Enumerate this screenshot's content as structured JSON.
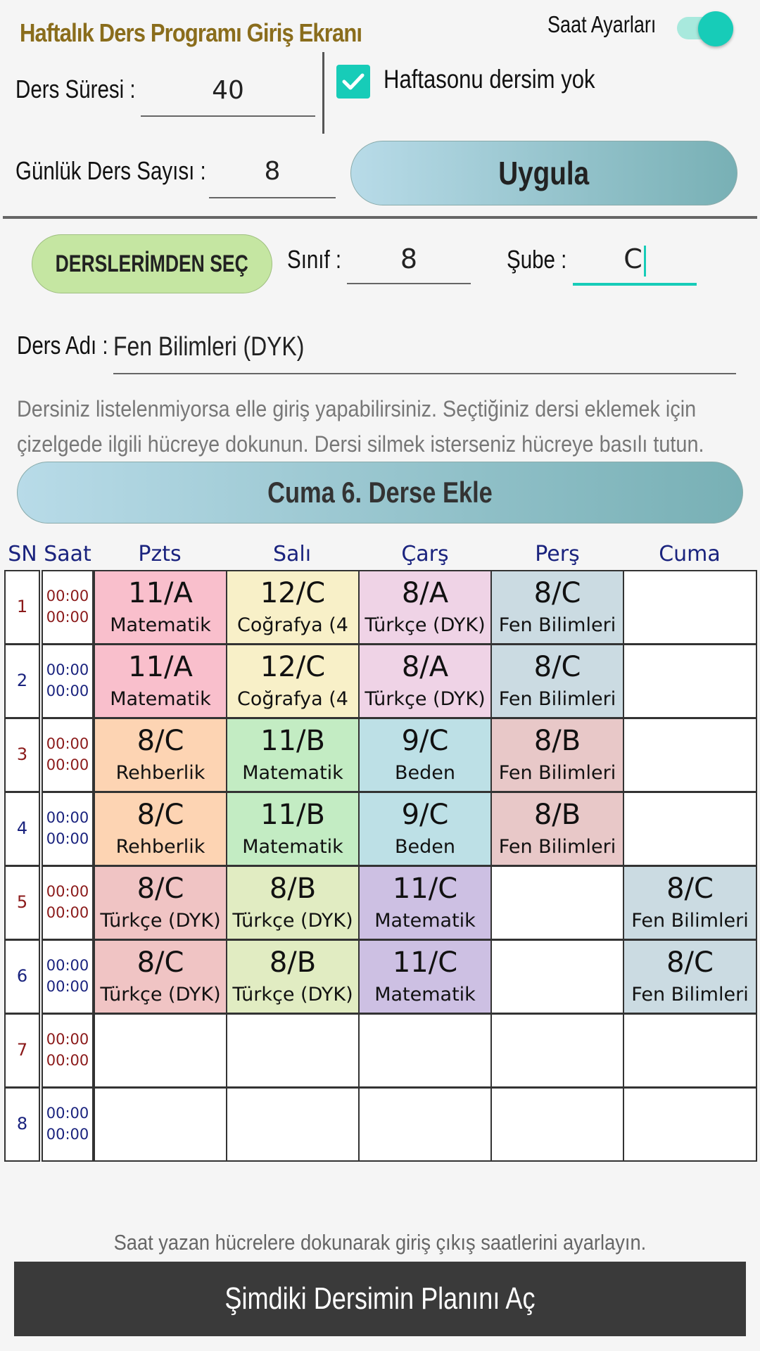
{
  "header": {
    "title": "Haftalık Ders Programı Giriş Ekranı",
    "saat_ayarlari_label": "Saat Ayarları",
    "saat_ayarlari_on": true
  },
  "settings": {
    "ders_suresi_label": "Ders Süresi :",
    "ders_suresi_value": "40",
    "gunluk_ders_label": "Günlük Ders Sayısı :",
    "gunluk_ders_value": "8",
    "haftasonu_label": "Haftasonu dersim yok",
    "haftasonu_checked": true,
    "uygula_label": "Uygula"
  },
  "entry": {
    "derslerimden_label": "DERSLERİMDEN SEÇ",
    "sinif_label": "Sınıf :",
    "sinif_value": "8",
    "sube_label": "Şube :",
    "sube_value": "C",
    "ders_adi_label": "Ders Adı :",
    "ders_adi_value": "Fen Bilimleri (DYK)",
    "info_text": "Dersiniz listelenmiyorsa elle giriş yapabilirsiniz. Seçtiğiniz dersi eklemek için çizelgede ilgili hücreye dokunun. Dersi silmek isterseniz hücreye basılı tutun.",
    "add_button_label": "Cuma 6. Derse Ekle"
  },
  "schedule": {
    "headers": [
      "SN",
      "Saat",
      "Pzts",
      "Salı",
      "Çarş",
      "Perş",
      "Cuma"
    ],
    "rows": [
      {
        "sn": "1",
        "start": "00:00",
        "end": "00:00",
        "cells": [
          {
            "cls": "11/A",
            "ders": "Matematik",
            "color": "#f9bfcc"
          },
          {
            "cls": "12/C",
            "ders": "Coğrafya (4",
            "color": "#f8f0c8"
          },
          {
            "cls": "8/A",
            "ders": "Türkçe (DYK)",
            "color": "#efd3e6"
          },
          {
            "cls": "8/C",
            "ders": "Fen Bilimleri",
            "color": "#cbdbe2"
          },
          {
            "cls": "",
            "ders": "",
            "color": "#ffffff"
          }
        ]
      },
      {
        "sn": "2",
        "start": "00:00",
        "end": "00:00",
        "cells": [
          {
            "cls": "11/A",
            "ders": "Matematik",
            "color": "#f9bfcc"
          },
          {
            "cls": "12/C",
            "ders": "Coğrafya (4",
            "color": "#f8f0c8"
          },
          {
            "cls": "8/A",
            "ders": "Türkçe (DYK)",
            "color": "#efd3e6"
          },
          {
            "cls": "8/C",
            "ders": "Fen Bilimleri",
            "color": "#cbdbe2"
          },
          {
            "cls": "",
            "ders": "",
            "color": "#ffffff"
          }
        ]
      },
      {
        "sn": "3",
        "start": "00:00",
        "end": "00:00",
        "cells": [
          {
            "cls": "8/C",
            "ders": "Rehberlik",
            "color": "#fdd4b3"
          },
          {
            "cls": "11/B",
            "ders": "Matematik",
            "color": "#c3ecc3"
          },
          {
            "cls": "9/C",
            "ders": "Beden",
            "color": "#bde0e6"
          },
          {
            "cls": "8/B",
            "ders": "Fen Bilimleri",
            "color": "#e8c8c8"
          },
          {
            "cls": "",
            "ders": "",
            "color": "#ffffff"
          }
        ]
      },
      {
        "sn": "4",
        "start": "00:00",
        "end": "00:00",
        "cells": [
          {
            "cls": "8/C",
            "ders": "Rehberlik",
            "color": "#fdd4b3"
          },
          {
            "cls": "11/B",
            "ders": "Matematik",
            "color": "#c3ecc3"
          },
          {
            "cls": "9/C",
            "ders": "Beden",
            "color": "#bde0e6"
          },
          {
            "cls": "8/B",
            "ders": "Fen Bilimleri",
            "color": "#e8c8c8"
          },
          {
            "cls": "",
            "ders": "",
            "color": "#ffffff"
          }
        ]
      },
      {
        "sn": "5",
        "start": "00:00",
        "end": "00:00",
        "cells": [
          {
            "cls": "8/C",
            "ders": "Türkçe (DYK)",
            "color": "#f0c4c4"
          },
          {
            "cls": "8/B",
            "ders": "Türkçe (DYK)",
            "color": "#e1ecc2"
          },
          {
            "cls": "11/C",
            "ders": "Matematik",
            "color": "#cdc0e3"
          },
          {
            "cls": "",
            "ders": "",
            "color": "#ffffff"
          },
          {
            "cls": "8/C",
            "ders": "Fen Bilimleri",
            "color": "#cbdbe2"
          }
        ]
      },
      {
        "sn": "6",
        "start": "00:00",
        "end": "00:00",
        "cells": [
          {
            "cls": "8/C",
            "ders": "Türkçe (DYK)",
            "color": "#f0c4c4"
          },
          {
            "cls": "8/B",
            "ders": "Türkçe (DYK)",
            "color": "#e1ecc2"
          },
          {
            "cls": "11/C",
            "ders": "Matematik",
            "color": "#cdc0e3"
          },
          {
            "cls": "",
            "ders": "",
            "color": "#ffffff"
          },
          {
            "cls": "8/C",
            "ders": "Fen Bilimleri",
            "color": "#cbdbe2"
          }
        ]
      },
      {
        "sn": "7",
        "start": "00:00",
        "end": "00:00",
        "cells": [
          {
            "cls": "",
            "ders": "",
            "color": "#ffffff"
          },
          {
            "cls": "",
            "ders": "",
            "color": "#ffffff"
          },
          {
            "cls": "",
            "ders": "",
            "color": "#ffffff"
          },
          {
            "cls": "",
            "ders": "",
            "color": "#ffffff"
          },
          {
            "cls": "",
            "ders": "",
            "color": "#ffffff"
          }
        ]
      },
      {
        "sn": "8",
        "start": "00:00",
        "end": "00:00",
        "cells": [
          {
            "cls": "",
            "ders": "",
            "color": "#ffffff"
          },
          {
            "cls": "",
            "ders": "",
            "color": "#ffffff"
          },
          {
            "cls": "",
            "ders": "",
            "color": "#ffffff"
          },
          {
            "cls": "",
            "ders": "",
            "color": "#ffffff"
          },
          {
            "cls": "",
            "ders": "",
            "color": "#ffffff"
          }
        ]
      }
    ],
    "odd_time_color": "#8b1a1a",
    "even_time_color": "#1a237e"
  },
  "footer": {
    "hint": "Saat yazan hücrelere dokunarak giriş çıkış saatlerini ayarlayın.",
    "plan_button_label": "Şimdiki Dersimin Planını Aç"
  }
}
